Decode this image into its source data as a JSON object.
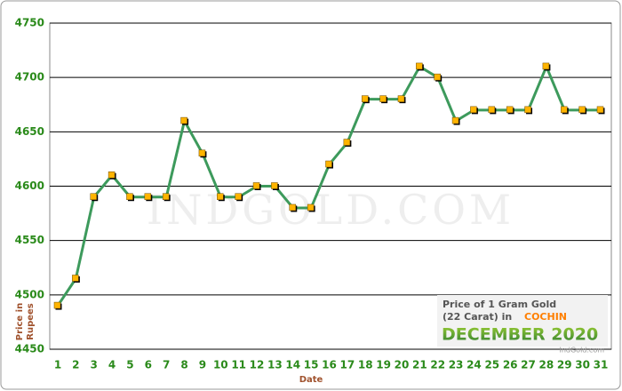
{
  "chart_data": {
    "type": "line",
    "categories": [
      "1",
      "2",
      "3",
      "4",
      "5",
      "6",
      "7",
      "8",
      "9",
      "10",
      "11",
      "12",
      "13",
      "14",
      "15",
      "16",
      "17",
      "18",
      "19",
      "20",
      "21",
      "22",
      "23",
      "24",
      "25",
      "26",
      "27",
      "28",
      "29",
      "30",
      "31"
    ],
    "series": [
      {
        "name": "Price of 1 Gram Gold",
        "color": "#3d9a5c",
        "values": [
          4490,
          4515,
          4590,
          4610,
          4590,
          4590,
          4590,
          4660,
          4630,
          4590,
          4590,
          4600,
          4600,
          4580,
          4580,
          4620,
          4640,
          4680,
          4680,
          4680,
          4710,
          4700,
          4660,
          4670,
          4670,
          4670,
          4670,
          4710,
          4670,
          4670,
          4670
        ]
      }
    ],
    "marker_color": "#ffb400",
    "ylim": [
      4450,
      4750
    ],
    "yticks": [
      4450,
      4500,
      4550,
      4600,
      4650,
      4700,
      4750
    ],
    "grid": true,
    "y_label": [
      "Price in",
      "Rupees"
    ],
    "x_label": "Date",
    "watermark": "INDGOLD.COM",
    "annotation": {
      "line1": "Price of 1 Gram Gold",
      "line2": "(22 Carat) in",
      "city": "COCHIN",
      "month": "DECEMBER 2020",
      "source": "IndGold.com"
    }
  }
}
